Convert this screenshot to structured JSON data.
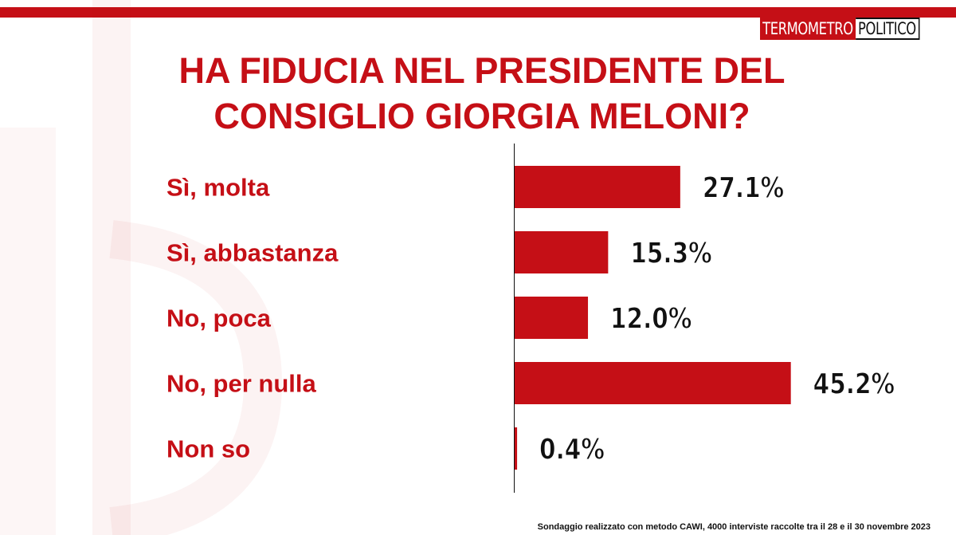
{
  "logo": {
    "part1": "TERMOMETRO",
    "part2": "POLITICO"
  },
  "title_line1": "HA FIDUCIA NEL PRESIDENTE DEL",
  "title_line2": "CONSIGLIO GIORGIA MELONI?",
  "footnote": "Sondaggio realizzato con metodo CAWI, 4000 interviste raccolte tra il 28 e il 30 novembre 2023",
  "colors": {
    "accent": "#c50f16",
    "value_text": "#111111"
  },
  "chart_data": {
    "type": "bar",
    "orientation": "horizontal",
    "title": "HA FIDUCIA NEL PRESIDENTE DEL CONSIGLIO GIORGIA MELONI?",
    "categories": [
      "Sì, molta",
      "Sì, abbastanza",
      "No, poca",
      "No, per nulla",
      "Non so"
    ],
    "values": [
      27.1,
      15.3,
      12.0,
      45.2,
      0.4
    ],
    "value_labels": [
      "27.1%",
      "15.3%",
      "12.0%",
      "45.2%",
      "0.4%"
    ],
    "unit": "%",
    "xlim": [
      0,
      50
    ],
    "grid": false,
    "legend": "none"
  }
}
